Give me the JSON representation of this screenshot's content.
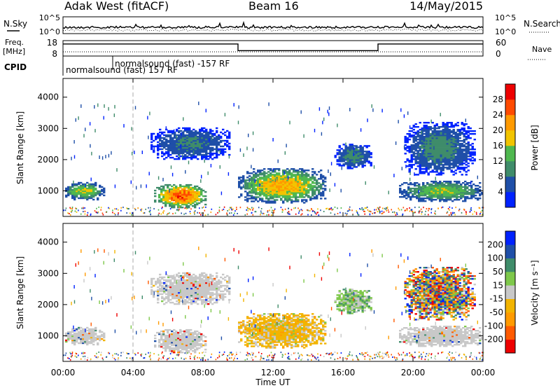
{
  "header": {
    "station": "Adak West (fitACF)",
    "beam": "Beam 16",
    "date": "14/May/2015"
  },
  "noise_panel": {
    "left_label": "N.Sky",
    "right_label": "N.Search",
    "left_ticks": [
      "10^5",
      "10^0"
    ],
    "right_ticks": [
      "10^5",
      "10^0"
    ]
  },
  "freq_panel": {
    "left_label": "Freq.",
    "left_unit": "[MHz]",
    "right_label": "Nave",
    "left_ticks": [
      "18",
      "8"
    ],
    "right_ticks": [
      "60",
      "0"
    ],
    "freq_steps": [
      {
        "from_h": 0,
        "to_h": 10,
        "level": 0.78
      },
      {
        "from_h": 10,
        "to_h": 18,
        "level": 0.35
      },
      {
        "from_h": 18,
        "to_h": 24,
        "level": 0.78
      }
    ]
  },
  "cpid": {
    "label": "CPID",
    "first": "normalsound (fast) 157 RF",
    "second": "normalsound (fast) -157 RF"
  },
  "colors": {
    "power": [
      "#0022ff",
      "#1f4fa8",
      "#3f8c6a",
      "#4fb84f",
      "#f2c400",
      "#ff9a00",
      "#ff4a00",
      "#ee0000"
    ],
    "velocity": [
      "#ee0000",
      "#ff5a00",
      "#ff9a00",
      "#f2b400",
      "#c8c8c8",
      "#7ec84a",
      "#3f8c6a",
      "#1f4fa8",
      "#0022ff"
    ],
    "gray": "#c8c8c8"
  },
  "chart_data": {
    "type": "heatmap",
    "x_axis": {
      "label": "Time UT",
      "range": [
        0,
        24
      ],
      "tick_hours": [
        0,
        4,
        8,
        12,
        16,
        20,
        24
      ],
      "tick_labels": [
        "00:00",
        "04:00",
        "08:00",
        "12:00",
        "16:00",
        "20:00",
        "00:00"
      ]
    },
    "y_axis": {
      "label": "Slant Range [km]",
      "range": [
        180,
        4600
      ],
      "ticks": [
        1000,
        2000,
        3000,
        4000
      ]
    },
    "power_colorbar": {
      "label": "Power [dB]",
      "range": [
        0,
        32
      ],
      "ticks": [
        4,
        8,
        12,
        16,
        20,
        24,
        28
      ]
    },
    "velocity_colorbar": {
      "label": "Velocity [m s⁻¹]",
      "tick_labels": [
        "200",
        "100",
        "50",
        "15",
        "-15",
        "-50",
        "-100",
        "-200"
      ]
    },
    "echo_regions": [
      {
        "name": "early-evening",
        "t0": 0.0,
        "t1": 2.3,
        "r0": 700,
        "r1": 1250,
        "power": [
          4,
          20
        ],
        "velocity": "gray"
      },
      {
        "name": "morning-band",
        "t0": 5.0,
        "t1": 9.5,
        "r0": 2000,
        "r1": 3000,
        "power": [
          2,
          10
        ],
        "velocity": "gray"
      },
      {
        "name": "morning-blobs",
        "t0": 5.2,
        "t1": 8.2,
        "r0": 450,
        "r1": 1200,
        "power": [
          8,
          30
        ],
        "velocity": "gray"
      },
      {
        "name": "main-blob",
        "t0": 10.0,
        "t1": 15.0,
        "r0": 600,
        "r1": 1700,
        "power": [
          6,
          24
        ],
        "velocity": "orange"
      },
      {
        "name": "afternoon-band",
        "t0": 15.5,
        "t1": 17.6,
        "r0": 1700,
        "r1": 2500,
        "power": [
          2,
          12
        ],
        "velocity": "green"
      },
      {
        "name": "evening-patch",
        "t0": 19.2,
        "t1": 24.0,
        "r0": 650,
        "r1": 1300,
        "power": [
          4,
          18
        ],
        "velocity": "gray"
      },
      {
        "name": "evening-upper",
        "t0": 19.5,
        "t1": 23.5,
        "r0": 1500,
        "r1": 3200,
        "power": [
          2,
          12
        ],
        "velocity": "mixed"
      }
    ]
  }
}
